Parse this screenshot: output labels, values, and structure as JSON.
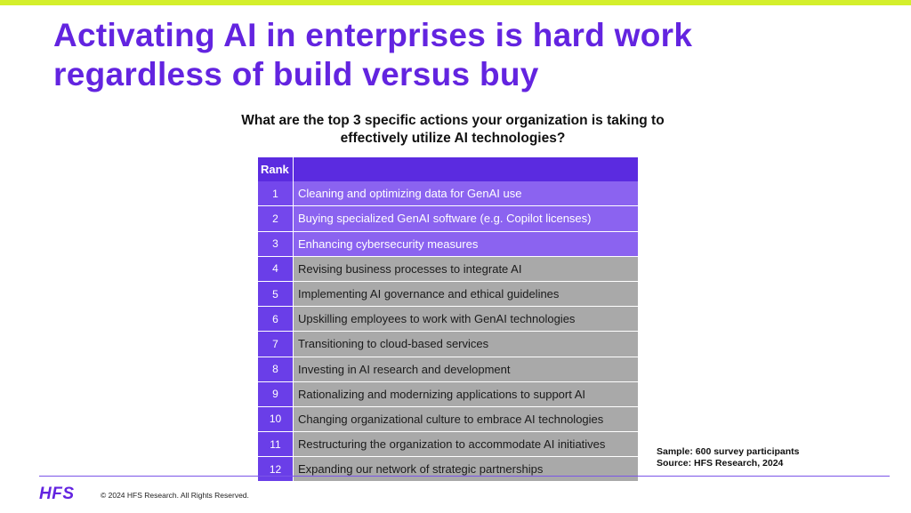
{
  "slide": {
    "title": "Activating AI in enterprises is hard work regardless of build versus buy",
    "question": "What are the top 3 specific actions your organization is taking to effectively utilize AI technologies?",
    "sample": "Sample: 600 survey participants",
    "source": "Source: HFS Research, 2024",
    "logo_text": "HFS",
    "copyright": "© 2024 HFS Research. All Rights Reserved."
  },
  "table": {
    "header": {
      "rank": "Rank",
      "action": ""
    },
    "rows": [
      {
        "rank": "1",
        "action": "Cleaning and optimizing data for GenAI use",
        "top3": true
      },
      {
        "rank": "2",
        "action": "Buying specialized GenAI software (e.g. Copilot licenses)",
        "top3": true
      },
      {
        "rank": "3",
        "action": "Enhancing cybersecurity measures",
        "top3": true
      },
      {
        "rank": "4",
        "action": "Revising business processes to integrate AI",
        "top3": false
      },
      {
        "rank": "5",
        "action": "Implementing AI governance and ethical guidelines",
        "top3": false
      },
      {
        "rank": "6",
        "action": "Upskilling employees to work with GenAI technologies",
        "top3": false
      },
      {
        "rank": "7",
        "action": "Transitioning to cloud-based services",
        "top3": false
      },
      {
        "rank": "8",
        "action": "Investing in AI research and development",
        "top3": false
      },
      {
        "rank": "9",
        "action": "Rationalizing and modernizing applications to support AI",
        "top3": false
      },
      {
        "rank": "10",
        "action": "Changing organizational culture to embrace AI technologies",
        "top3": false
      },
      {
        "rank": "11",
        "action": "Restructuring the organization to accommodate AI initiatives",
        "top3": false
      },
      {
        "rank": "12",
        "action": "Expanding our network of strategic partnerships",
        "top3": false
      }
    ]
  },
  "colors": {
    "accent_purple": "#6324e0",
    "top_bar": "#d4ef2c",
    "highlight_row": "#8b63f0",
    "normal_row": "#a9a9a9"
  }
}
